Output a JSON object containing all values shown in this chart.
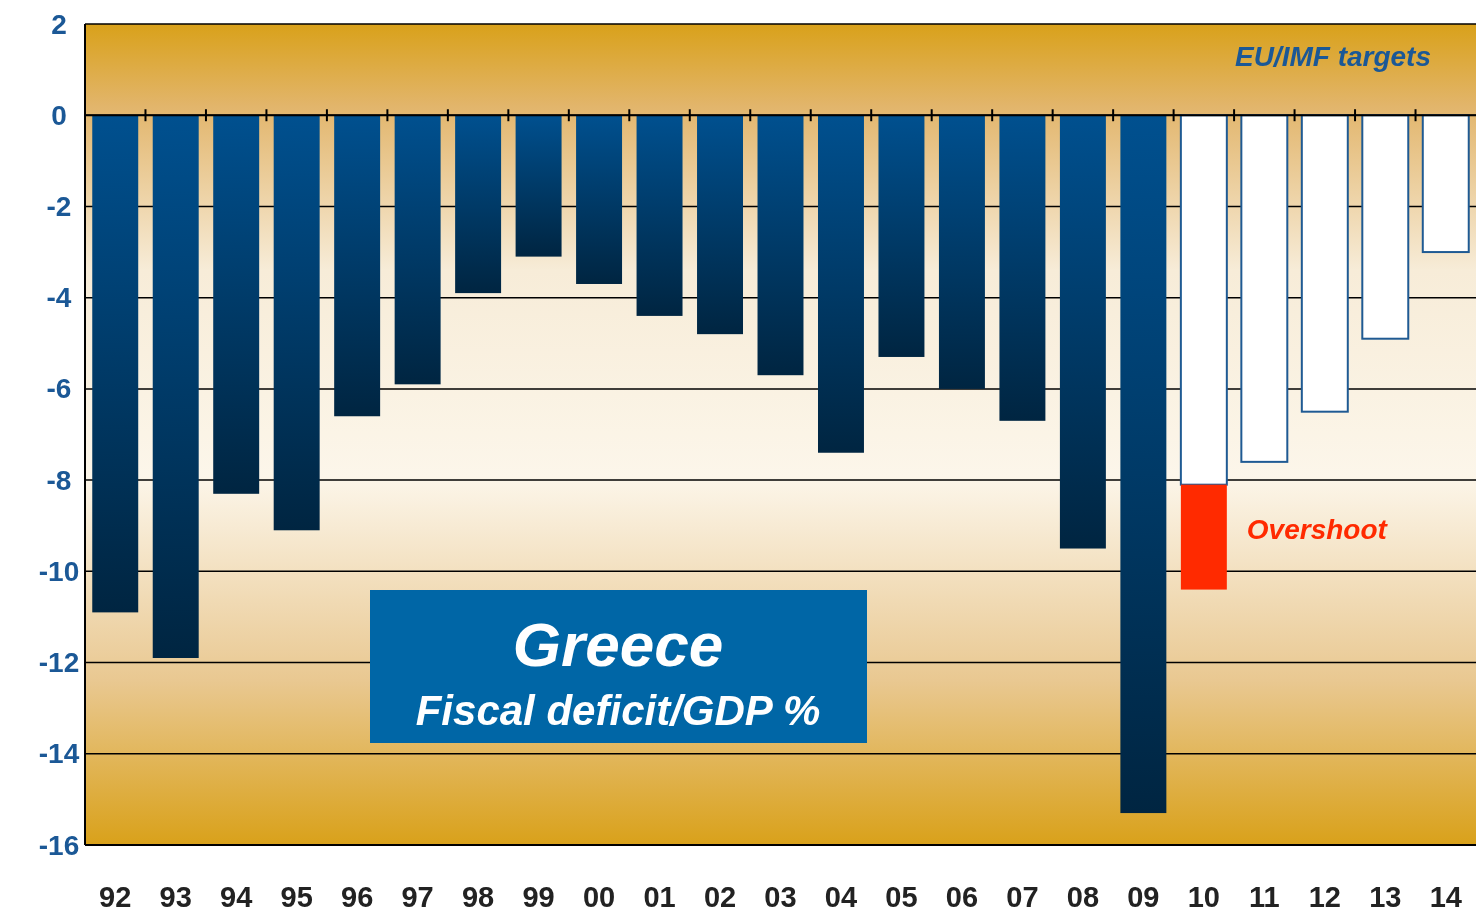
{
  "chart_data": {
    "type": "bar",
    "title": "Greece",
    "subtitle": "Fiscal deficit/GDP %",
    "stacked": true,
    "categories": [
      "92",
      "93",
      "94",
      "95",
      "96",
      "97",
      "98",
      "99",
      "00",
      "01",
      "02",
      "03",
      "04",
      "05",
      "06",
      "07",
      "08",
      "09",
      "10",
      "11",
      "12",
      "13",
      "14"
    ],
    "series": [
      {
        "color": "#00508f",
        "values": [
          -10.9,
          -11.9,
          -8.3,
          -9.1,
          -6.6,
          -5.9,
          -3.9,
          -3.1,
          -3.7,
          -4.4,
          -4.8,
          -5.7,
          -7.4,
          -5.3,
          -6.0,
          -6.7,
          -9.5,
          -15.3,
          null,
          null,
          null,
          null,
          null
        ]
      },
      {
        "name": "EU/IMF targets",
        "color": "#ffffff",
        "values": [
          null,
          null,
          null,
          null,
          null,
          null,
          null,
          null,
          null,
          null,
          null,
          null,
          null,
          null,
          null,
          null,
          null,
          null,
          -8.1,
          -7.6,
          -6.5,
          -4.9,
          -3.0
        ]
      },
      {
        "name": "Overshoot",
        "color": "#ff2a00",
        "values": [
          null,
          null,
          null,
          null,
          null,
          null,
          null,
          null,
          null,
          null,
          null,
          null,
          null,
          null,
          null,
          null,
          null,
          null,
          -2.3,
          null,
          null,
          null,
          null
        ]
      }
    ],
    "ylim": [
      -16,
      2
    ],
    "yticks": [
      2,
      0,
      -2,
      -4,
      -6,
      -8,
      -10,
      -12,
      -14,
      -16
    ],
    "grid": "y"
  }
}
